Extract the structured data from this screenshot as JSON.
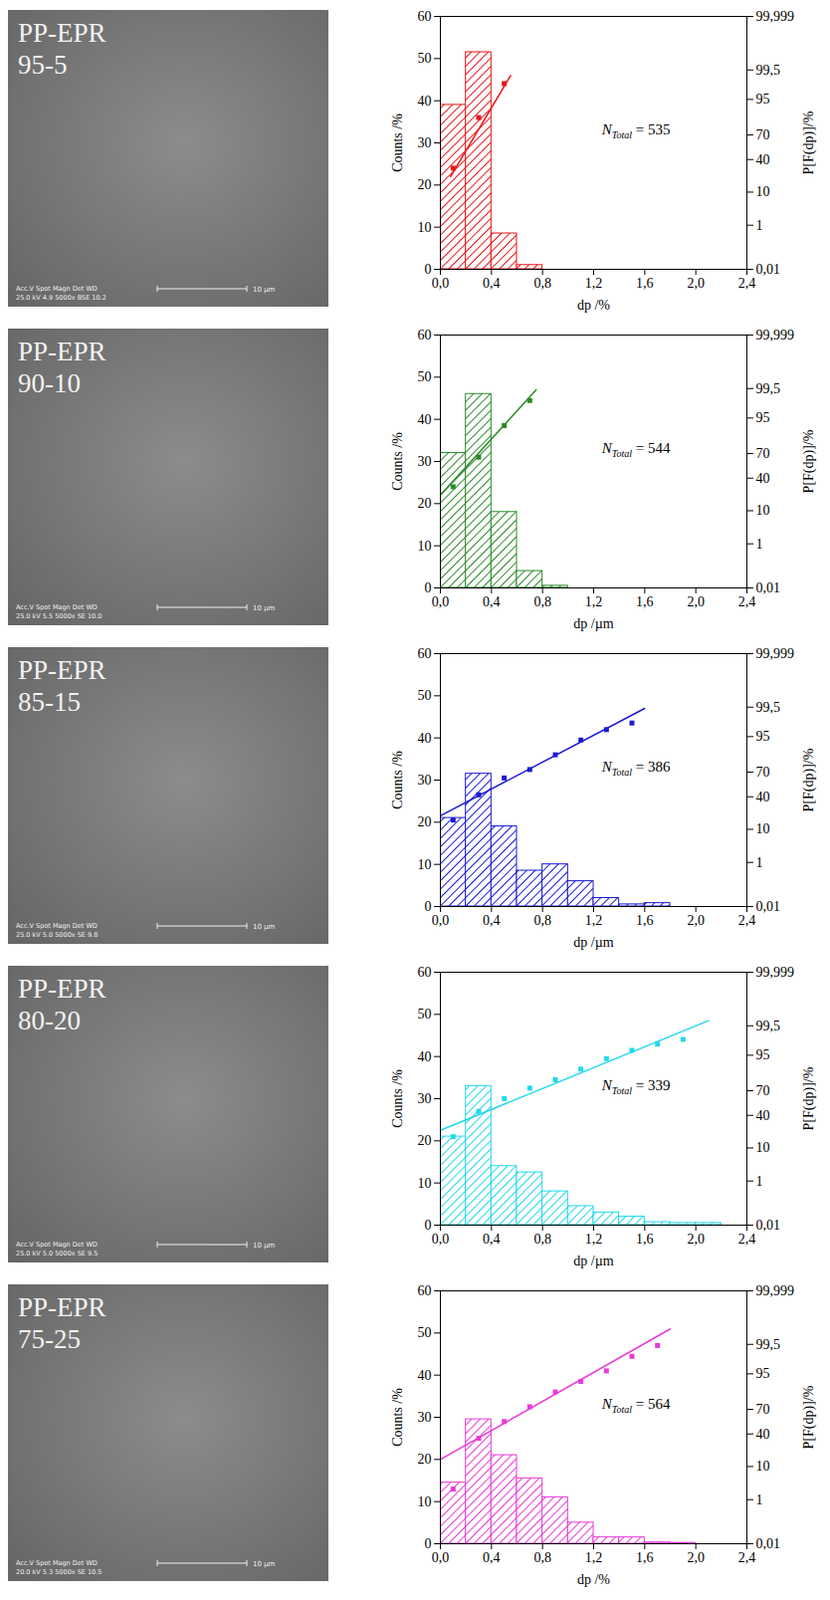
{
  "chart_data": [
    {
      "type": "histogram",
      "title": "PP-EPR 95-5",
      "micrograph": {
        "info": [
          "Acc.V  Spot Magn   Det  WD",
          "25.0 kV 4.9  5000x  BSE 10.2"
        ],
        "scale_bar": "10 µm"
      },
      "x_label": "dp /%",
      "y_label": "Counts /%",
      "y2_label": "P[F(dp)]/%",
      "bins": [
        0,
        0.2,
        0.4,
        0.6,
        0.8
      ],
      "values": [
        39,
        51.5,
        8.5,
        1
      ],
      "color": "#e8151b",
      "xlim": [
        0,
        2.4
      ],
      "xticks": [
        {
          "value": 0,
          "label": "0,0"
        },
        {
          "value": 0.4,
          "label": "0,4"
        },
        {
          "value": 0.8,
          "label": "0,8"
        },
        {
          "value": 1.2,
          "label": "1,2"
        },
        {
          "value": 1.6,
          "label": "1,6"
        },
        {
          "value": 2.0,
          "label": "2,0"
        },
        {
          "value": 2.4,
          "label": "2,4"
        }
      ],
      "ylim": [
        0,
        60
      ],
      "yticks": [
        0,
        10,
        20,
        30,
        40,
        50,
        60
      ],
      "y2lim": [
        0.01,
        99.999
      ],
      "y2ticks": [
        {
          "value": 0.01,
          "label": "0,01"
        },
        1,
        10,
        40,
        70,
        95,
        {
          "value": 99.5,
          "label": "99,5"
        },
        {
          "value": 99.999,
          "label": "99,999"
        }
      ],
      "points": {
        "x": [
          0.1,
          0.3,
          0.5
        ],
        "values": [
          30,
          85.8,
          98.4
        ],
        "axis": "y2",
        "marker": "square"
      },
      "fit": {
        "x": [
          0.08,
          0.55
        ],
        "values": [
          21.4,
          99.18
        ],
        "axis": "y2"
      },
      "annotation": {
        "text": "N",
        "subscript": "Total",
        "value": 535
      }
    },
    {
      "type": "histogram",
      "title": "PP-EPR 90-10",
      "micrograph": {
        "info": [
          "Acc.V  Spot Magn   Det  WD",
          "25.0 kV 5.5  5000x  SE  10.0"
        ],
        "scale_bar": "10 µm"
      },
      "x_label": "dp /µm",
      "y_label": "Counts /%",
      "y2_label": "P[F(dp)]/%",
      "bins": [
        0,
        0.2,
        0.4,
        0.6,
        0.8,
        1.0
      ],
      "values": [
        32,
        46,
        18,
        4,
        0.5
      ],
      "color": "#2a8a2a",
      "xlim": [
        0,
        2.4
      ],
      "xticks": [
        {
          "value": 0,
          "label": "0,0"
        },
        {
          "value": 0.4,
          "label": "0,4"
        },
        {
          "value": 0.8,
          "label": "0,8"
        },
        {
          "value": 1.2,
          "label": "1,2"
        },
        {
          "value": 1.6,
          "label": "1,6"
        },
        {
          "value": 2.0,
          "label": "2,0"
        },
        {
          "value": 2.4,
          "label": "2,4"
        }
      ],
      "ylim": [
        0,
        60
      ],
      "yticks": [
        0,
        10,
        20,
        30,
        40,
        50,
        60
      ],
      "y2lim": [
        0.01,
        99.999
      ],
      "y2ticks": [
        {
          "value": 0.01,
          "label": "0,01"
        },
        1,
        10,
        40,
        70,
        95,
        {
          "value": 99.5,
          "label": "99,5"
        },
        {
          "value": 99.999,
          "label": "99,999"
        }
      ],
      "points": {
        "x": [
          0.1,
          0.3,
          0.5,
          0.7
        ],
        "values": [
          30,
          65.8,
          92,
          98.6
        ],
        "axis": "y2",
        "marker": "square"
      },
      "fit": {
        "x": [
          0.0,
          0.75
        ],
        "values": [
          21.4,
          99.44
        ],
        "axis": "y2"
      },
      "annotation": {
        "text": "N",
        "subscript": "Total",
        "value": 544
      }
    },
    {
      "type": "histogram",
      "title": "PP-EPR 85-15",
      "micrograph": {
        "info": [
          "Acc.V  Spot Magn   Det  WD",
          "25.0 kV 5.0  5000x  SE  9.8"
        ],
        "scale_bar": "10 µm"
      },
      "x_label": "dp /µm",
      "y_label": "Counts /%",
      "y2_label": "P[F(dp)]/%",
      "bins": [
        0,
        0.2,
        0.4,
        0.6,
        0.8,
        1.0,
        1.2,
        1.4,
        1.6,
        1.8
      ],
      "values": [
        21,
        31.5,
        19,
        8.5,
        10,
        6,
        2,
        0.5,
        0.8
      ],
      "color": "#1a1ad4",
      "xlim": [
        0,
        2.4
      ],
      "xticks": [
        {
          "value": 0,
          "label": "0,0"
        },
        {
          "value": 0.4,
          "label": "0,4"
        },
        {
          "value": 0.8,
          "label": "0,8"
        },
        {
          "value": 1.2,
          "label": "1,2"
        },
        {
          "value": 1.6,
          "label": "1,6"
        },
        {
          "value": 2.0,
          "label": "2,0"
        },
        {
          "value": 2.4,
          "label": "2,4"
        }
      ],
      "ylim": [
        0,
        60
      ],
      "yticks": [
        0,
        10,
        20,
        30,
        40,
        50,
        60
      ],
      "y2lim": [
        0.01,
        99.999
      ],
      "y2ticks": [
        {
          "value": 0.01,
          "label": "0,01"
        },
        1,
        10,
        40,
        70,
        95,
        {
          "value": 99.5,
          "label": "99,5"
        },
        {
          "value": 99.999,
          "label": "99,999"
        }
      ],
      "points": {
        "x": [
          0.1,
          0.3,
          0.5,
          0.7,
          0.9,
          1.1,
          1.3,
          1.5
        ],
        "values": [
          16.1,
          42.4,
          63.3,
          72.8,
          85.8,
          93.8,
          96.9,
          98.1
        ],
        "axis": "y2",
        "marker": "square"
      },
      "fit": {
        "x": [
          0.0,
          1.6
        ],
        "values": [
          19.6,
          99.44
        ],
        "axis": "y2"
      },
      "annotation": {
        "text": "N",
        "subscript": "Total",
        "value": 386
      }
    },
    {
      "type": "histogram",
      "title": "PP-EPR 80-20",
      "micrograph": {
        "info": [
          "Acc.V  Spot Magn   Det  WD",
          "25.0 kV 5.0  5000x  SE  9.5"
        ],
        "scale_bar": "10 µm"
      },
      "x_label": "dp /µm",
      "y_label": "Counts /%",
      "y2_label": "P[F(dp)]/%",
      "bins": [
        0,
        0.2,
        0.4,
        0.6,
        0.8,
        1.0,
        1.2,
        1.4,
        1.6,
        1.8,
        2.0,
        2.2
      ],
      "values": [
        21,
        33,
        14,
        12.5,
        8,
        4.5,
        3,
        2,
        0.7,
        0.5,
        0.5
      ],
      "color": "#22d8ec",
      "xlim": [
        0,
        2.4
      ],
      "xticks": [
        {
          "value": 0,
          "label": "0,0"
        },
        {
          "value": 0.4,
          "label": "0,4"
        },
        {
          "value": 0.8,
          "label": "0,8"
        },
        {
          "value": 1.2,
          "label": "1,2"
        },
        {
          "value": 1.6,
          "label": "1,6"
        },
        {
          "value": 2.0,
          "label": "2,0"
        },
        {
          "value": 2.4,
          "label": "2,4"
        }
      ],
      "ylim": [
        0,
        60
      ],
      "yticks": [
        0,
        10,
        20,
        30,
        40,
        50,
        60
      ],
      "y2lim": [
        0.01,
        99.999
      ],
      "y2ticks": [
        {
          "value": 0.01,
          "label": "0,01"
        },
        1,
        10,
        40,
        70,
        95,
        {
          "value": 99.5,
          "label": "99,5"
        },
        {
          "value": 99.999,
          "label": "99,999"
        }
      ],
      "points": {
        "x": [
          0.1,
          0.3,
          0.5,
          0.7,
          0.9,
          1.1,
          1.3,
          1.5,
          1.7,
          1.9
        ],
        "values": [
          17.7,
          45,
          60.8,
          72.8,
          80.8,
          88.6,
          93.8,
          96.4,
          97.7,
          98.4
        ],
        "axis": "y2",
        "marker": "square"
      },
      "fit": {
        "x": [
          0.0,
          2.1
        ],
        "values": [
          23.4,
          99.69
        ],
        "axis": "y2"
      },
      "annotation": {
        "text": "N",
        "subscript": "Total",
        "value": 339
      }
    },
    {
      "type": "histogram",
      "title": "PP-EPR 75-25",
      "micrograph": {
        "info": [
          "Acc.V  Spot Magn   Det  WD",
          "20.0 kV 5.3  5000x  SE  10.5"
        ],
        "scale_bar": "10 µm"
      },
      "x_label": "dp /%",
      "y_label": "Counts /%",
      "y2_label": "P[F(dp)]/%",
      "bins": [
        0,
        0.2,
        0.4,
        0.6,
        0.8,
        1.0,
        1.2,
        1.4,
        1.6,
        1.8,
        2.0
      ],
      "values": [
        14.5,
        29.5,
        21,
        15.5,
        11,
        5,
        1.5,
        1.5,
        0.3,
        0.2
      ],
      "color": "#e83ad8",
      "xlim": [
        0,
        2.4
      ],
      "xticks": [
        {
          "value": 0,
          "label": "0,0"
        },
        {
          "value": 0.4,
          "label": "0,4"
        },
        {
          "value": 0.8,
          "label": "0,8"
        },
        {
          "value": 1.2,
          "label": "1,2"
        },
        {
          "value": 1.6,
          "label": "1,6"
        },
        {
          "value": 2.0,
          "label": "2,0"
        },
        {
          "value": 2.4,
          "label": "2,4"
        }
      ],
      "ylim": [
        0,
        60
      ],
      "yticks": [
        0,
        10,
        20,
        30,
        40,
        50,
        60
      ],
      "y2lim": [
        0.01,
        99.999
      ],
      "y2ticks": [
        {
          "value": 0.01,
          "label": "0,01"
        },
        1,
        10,
        40,
        70,
        95,
        {
          "value": 99.5,
          "label": "99,5"
        },
        {
          "value": 99.999,
          "label": "99,999"
        }
      ],
      "points": {
        "x": [
          0.1,
          0.3,
          0.5,
          0.7,
          0.9,
          1.1,
          1.3,
          1.5,
          1.7
        ],
        "values": [
          2.3,
          34.8,
          55.6,
          72.8,
          85.8,
          92,
          95.9,
          98.6,
          99.44
        ],
        "axis": "y2",
        "marker": "square"
      },
      "fit": {
        "x": [
          0.0,
          1.8
        ],
        "values": [
          14.5,
          99.89
        ],
        "axis": "y2"
      },
      "annotation": {
        "text": "N",
        "subscript": "Total",
        "value": 564
      }
    }
  ]
}
